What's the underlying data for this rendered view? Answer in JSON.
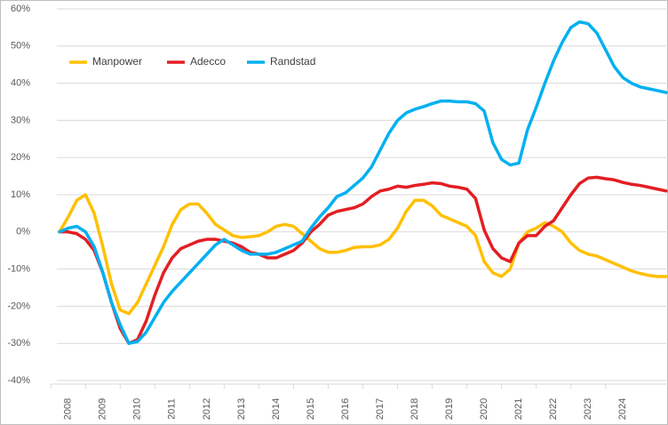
{
  "chart_data": {
    "type": "line",
    "categories": [
      null,
      "2008",
      null,
      null,
      null,
      "2009",
      null,
      null,
      null,
      "2010",
      null,
      null,
      null,
      "2011",
      null,
      null,
      null,
      "2012",
      null,
      null,
      null,
      "2013",
      null,
      null,
      null,
      "2014",
      null,
      null,
      null,
      "2015",
      null,
      null,
      null,
      "2016",
      null,
      null,
      null,
      "2017",
      null,
      null,
      null,
      "2018",
      null,
      null,
      null,
      "2019",
      null,
      null,
      null,
      "2020",
      null,
      null,
      null,
      "2021",
      null,
      null,
      null,
      "2022",
      null,
      null,
      null,
      "2023",
      null,
      null,
      null,
      "2024",
      null,
      null,
      null,
      null,
      null
    ],
    "series": [
      {
        "name": "Manpower",
        "color": "#ffc000",
        "values": [
          0,
          4,
          8.5,
          10,
          5,
          -4,
          -14,
          -21,
          -22,
          -19,
          -14,
          -9,
          -4,
          2,
          6,
          7.5,
          7.5,
          5,
          2,
          0.5,
          -1,
          -1.5,
          -1.3,
          -1,
          0,
          1.5,
          2,
          1.5,
          -0.5,
          -2.5,
          -4.5,
          -5.5,
          -5.5,
          -5,
          -4.2,
          -4,
          -4,
          -3.5,
          -2,
          1,
          5.5,
          8.5,
          8.5,
          7,
          4.5,
          3.5,
          2.5,
          1.5,
          -1,
          -8,
          -11,
          -12,
          -10,
          -3,
          0,
          1,
          2.5,
          1.5,
          0,
          -3,
          -5,
          -6,
          -6.5,
          -7.5,
          -8.5,
          -9.5,
          -10.5,
          -11.2,
          -11.7,
          -12,
          -12
        ]
      },
      {
        "name": "Adecco",
        "color": "#e31e24",
        "values": [
          0,
          0,
          -0.5,
          -2,
          -5,
          -11,
          -19,
          -26,
          -30,
          -29,
          -24,
          -17,
          -11,
          -7,
          -4.5,
          -3.5,
          -2.5,
          -2,
          -2,
          -2.5,
          -3,
          -4,
          -5.5,
          -6,
          -7,
          -7,
          -6,
          -5,
          -3,
          0,
          2,
          4.5,
          5.5,
          6,
          6.5,
          7.5,
          9.5,
          11,
          11.5,
          12.3,
          12,
          12.5,
          12.8,
          13.2,
          13,
          12.3,
          12,
          11.5,
          9,
          0.5,
          -4.5,
          -7,
          -8,
          -3,
          -1,
          -1,
          1.5,
          3,
          6.5,
          10,
          13,
          14.5,
          14.7,
          14.3,
          14,
          13.3,
          12.8,
          12.5,
          12,
          11.5,
          11
        ]
      },
      {
        "name": "Randstad",
        "color": "#00b0f0",
        "values": [
          0,
          1,
          1.5,
          0,
          -4,
          -11,
          -19,
          -25,
          -30,
          -29.5,
          -27,
          -23,
          -19,
          -16,
          -13.5,
          -11,
          -8.5,
          -6,
          -3.5,
          -2,
          -3.5,
          -5,
          -6,
          -6,
          -6,
          -5.5,
          -4.5,
          -3.5,
          -2.5,
          1,
          4,
          6.5,
          9.5,
          10.5,
          12.5,
          14.5,
          17.5,
          22,
          26.5,
          30,
          32,
          33,
          33.7,
          34.5,
          35.2,
          35.2,
          35,
          35,
          34.5,
          32.5,
          24,
          19.5,
          18,
          18.5,
          27.5,
          33.5,
          40,
          46,
          51,
          55,
          56.5,
          56,
          53.5,
          49,
          44.5,
          41.5,
          40,
          39,
          38.5,
          38,
          37.5
        ]
      }
    ],
    "ylim": [
      -40,
      60
    ],
    "yticks": [
      {
        "value": -40,
        "label": "-40%"
      },
      {
        "value": -30,
        "label": "-30%"
      },
      {
        "value": -20,
        "label": "-20%"
      },
      {
        "value": -10,
        "label": "-10%"
      },
      {
        "value": 0,
        "label": "0%"
      },
      {
        "value": 10,
        "label": "10%"
      },
      {
        "value": 20,
        "label": "20%"
      },
      {
        "value": 30,
        "label": "30%"
      },
      {
        "value": 40,
        "label": "40%"
      },
      {
        "value": 50,
        "label": "50%"
      },
      {
        "value": 60,
        "label": "60%"
      }
    ],
    "grid": true
  }
}
